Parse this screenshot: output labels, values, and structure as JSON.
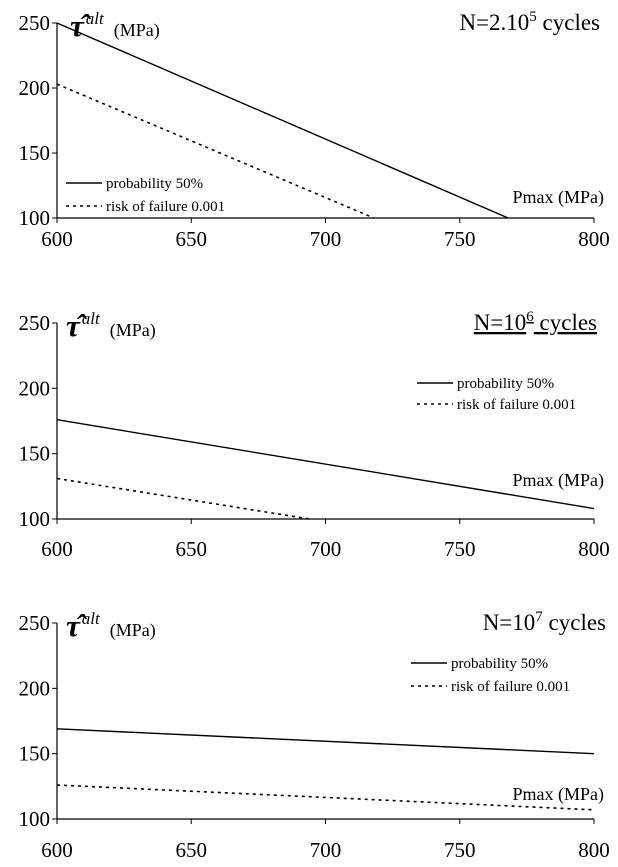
{
  "chart_data": [
    {
      "type": "line",
      "title": "N=2.10",
      "title_sup": "5",
      "title_suffix": " cycles",
      "title_underline": false,
      "ylabel_symbol": "τ̂",
      "ylabel_sup": "alt",
      "ylabel_unit": "(MPa)",
      "xlabel": "Pmax (MPa)",
      "xlim": [
        600,
        800
      ],
      "ylim": [
        100,
        250
      ],
      "xticks": [
        600,
        650,
        700,
        750,
        800
      ],
      "yticks": [
        100,
        150,
        200,
        250
      ],
      "legend_position": "lower-left",
      "series": [
        {
          "name": "probability 50%",
          "style": "solid",
          "x": [
            600,
            768
          ],
          "y": [
            250,
            100
          ]
        },
        {
          "name": "risk of failure 0.001",
          "style": "dashed",
          "x": [
            600,
            718
          ],
          "y": [
            203,
            100
          ]
        }
      ]
    },
    {
      "type": "line",
      "title": "N=10",
      "title_sup": "6",
      "title_suffix": " cycles",
      "title_underline": true,
      "ylabel_symbol": "τ̂",
      "ylabel_sup": "alt",
      "ylabel_unit": "(MPa)",
      "xlabel": "Pmax (MPa)",
      "xlim": [
        600,
        800
      ],
      "ylim": [
        100,
        250
      ],
      "xticks": [
        600,
        650,
        700,
        750,
        800
      ],
      "yticks": [
        100,
        150,
        200,
        250
      ],
      "legend_position": "top-right",
      "series": [
        {
          "name": "probability 50%",
          "style": "solid",
          "x": [
            600,
            800
          ],
          "y": [
            176,
            108
          ]
        },
        {
          "name": "risk of failure 0.001",
          "style": "dashed",
          "x": [
            600,
            694
          ],
          "y": [
            131,
            100
          ]
        }
      ]
    },
    {
      "type": "line",
      "title": "N=10",
      "title_sup": "7",
      "title_suffix": " cycles",
      "title_underline": false,
      "ylabel_symbol": "τ̂",
      "ylabel_sup": "alt",
      "ylabel_unit": "(MPa)",
      "xlabel": "Pmax (MPa)",
      "xlim": [
        600,
        800
      ],
      "ylim": [
        100,
        250
      ],
      "xticks": [
        600,
        650,
        700,
        750,
        800
      ],
      "yticks": [
        100,
        150,
        200,
        250
      ],
      "legend_position": "top-right",
      "series": [
        {
          "name": "probability 50%",
          "style": "solid",
          "x": [
            600,
            800
          ],
          "y": [
            169,
            150
          ]
        },
        {
          "name": "risk of failure 0.001",
          "style": "dashed",
          "x": [
            600,
            800
          ],
          "y": [
            126,
            107
          ]
        }
      ]
    }
  ]
}
